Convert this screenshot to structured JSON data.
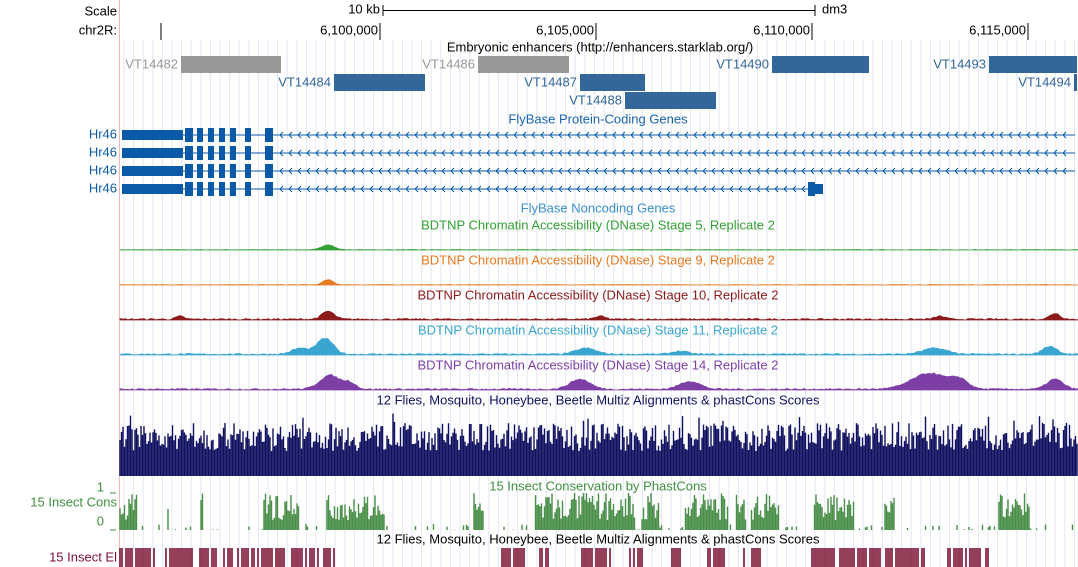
{
  "scale": {
    "label": "Scale",
    "size": "10 kb",
    "assembly": "dm3"
  },
  "position": {
    "chrom": "chr2R:",
    "ticks": [
      "6,100,000",
      "6,105,000",
      "6,110,000",
      "6,115,000"
    ]
  },
  "tracks": {
    "enhancers": {
      "title": "Embryonic enhancers (http://enhancers.starklab.org/)",
      "items": [
        "VT14482",
        "VT14484",
        "VT14486",
        "VT14487",
        "VT14488",
        "VT14490",
        "VT14493",
        "VT14494"
      ]
    },
    "genes": {
      "title": "FlyBase Protein-Coding Genes",
      "names": [
        "Hr46",
        "Hr46",
        "Hr46",
        "Hr46"
      ]
    },
    "noncoding": {
      "title": "FlyBase Noncoding Genes"
    },
    "dnase": [
      "BDTNP Chromatin Accessibility (DNase) Stage 5, Replicate 2",
      "BDTNP Chromatin Accessibility (DNase) Stage 9, Replicate 2",
      "BDTNP Chromatin Accessibility (DNase) Stage 10, Replicate 2",
      "BDTNP Chromatin Accessibility (DNase) Stage 11, Replicate 2",
      "BDTNP Chromatin Accessibility (DNase) Stage 14, Replicate 2"
    ],
    "multiz": {
      "title": "12 Flies, Mosquito, Honeybee, Beetle Multiz Alignments & phastCons Scores"
    },
    "phastcons": {
      "title": "15 Insect Conservation by PhastCons",
      "label": "15 Insect Cons",
      "max": "1",
      "min": "0"
    },
    "elements": {
      "title": "12 Flies, Mosquito, Honeybee, Beetle Multiz Alignments & phastCons Scores",
      "label": "15 Insect El"
    }
  }
}
